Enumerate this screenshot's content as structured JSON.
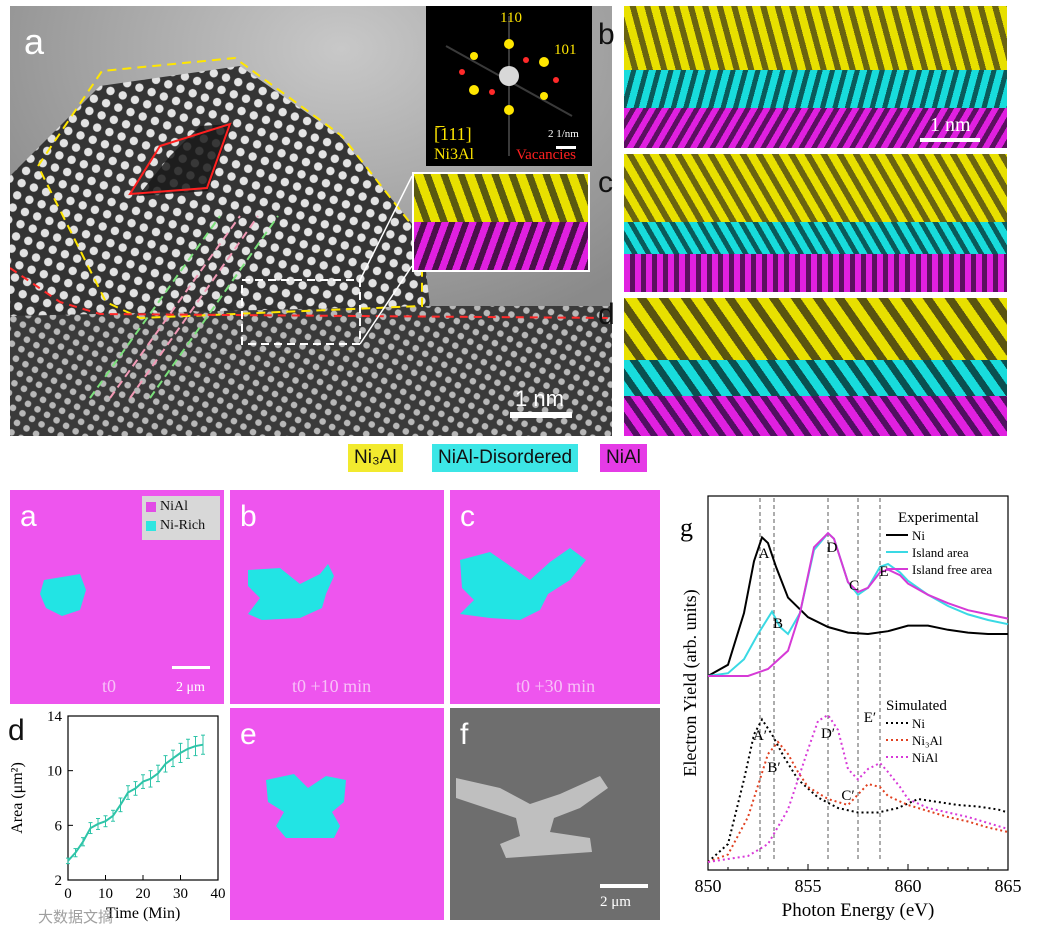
{
  "top": {
    "panel_a": {
      "label": "a",
      "scalebar": "1 nm",
      "inset_fft": {
        "spot_110": "110",
        "spot_101": "101",
        "zone_axis": "[̅111]",
        "phase": "Ni3Al",
        "vacancies": "Vacancies",
        "scalebar": "2 1/nm"
      }
    },
    "panel_b": {
      "label": "b",
      "scalebar": "1 nm"
    },
    "panel_c": {
      "label": "c"
    },
    "panel_d": {
      "label": "d"
    },
    "legend": [
      {
        "label": "Ni₃Al",
        "color": "#f2ea2e"
      },
      {
        "label": "NiAl-Disordered",
        "color": "#3ce6e6"
      },
      {
        "label": "NiAl",
        "color": "#e53be6"
      }
    ],
    "colors": {
      "yellow": "#e8e000",
      "cyan": "#18dcdc",
      "magenta": "#e020e0"
    }
  },
  "bottom": {
    "map_a": {
      "label": "a",
      "time": "t0",
      "scalebar": "2 μm",
      "legend": [
        {
          "label": "NiAl",
          "color": "#e24be6"
        },
        {
          "label": "Ni-Rich",
          "color": "#2ee6e0"
        }
      ]
    },
    "map_b": {
      "label": "b",
      "time": "t0 +10 min"
    },
    "map_c": {
      "label": "c",
      "time": "t0 +30 min"
    },
    "map_e": {
      "label": "e"
    },
    "map_f": {
      "label": "f",
      "scalebar": "2 μm"
    },
    "colors": {
      "background": "#ee55ee",
      "island": "#22e4e4"
    }
  },
  "watermark": "大数据文摘",
  "chart_data": [
    {
      "id": "d",
      "label": "d",
      "type": "line",
      "title": "",
      "xlabel": "Time (Min)",
      "ylabel": "Area (μm²)",
      "xlim": [
        0,
        40
      ],
      "ylim": [
        2,
        14
      ],
      "xticks": [
        0,
        10,
        20,
        30,
        40
      ],
      "yticks": [
        2,
        6,
        10,
        14
      ],
      "color": "#2ec4a8",
      "series": [
        {
          "name": "Area",
          "x": [
            0,
            2,
            4,
            6,
            8,
            10,
            12,
            14,
            16,
            18,
            20,
            22,
            24,
            26,
            28,
            30,
            32,
            34,
            36
          ],
          "y": [
            3.4,
            4.0,
            4.8,
            5.8,
            6.1,
            6.3,
            6.7,
            7.5,
            8.4,
            8.7,
            9.2,
            9.4,
            9.8,
            10.5,
            10.9,
            11.3,
            11.6,
            11.8,
            11.9
          ],
          "err": [
            0.2,
            0.3,
            0.3,
            0.4,
            0.4,
            0.4,
            0.4,
            0.5,
            0.5,
            0.5,
            0.5,
            0.6,
            0.6,
            0.6,
            0.6,
            0.7,
            0.7,
            0.7,
            0.7
          ]
        }
      ]
    },
    {
      "id": "g",
      "label": "g",
      "type": "line",
      "title": "",
      "xlabel": "Photon Energy (eV)",
      "ylabel": "Electron Yield (arb. units)",
      "xlim": [
        850,
        865
      ],
      "xticks": [
        850,
        855,
        860,
        865
      ],
      "legend_experimental_title": "Experimental",
      "legend_simulated_title": "Simulated",
      "experimental": [
        {
          "name": "Ni",
          "color": "#000000",
          "dash": "solid",
          "x": [
            850,
            851,
            851.8,
            852.3,
            852.7,
            853.0,
            853.4,
            854,
            855,
            856,
            857,
            858,
            859,
            860,
            861,
            862,
            863,
            864,
            865
          ],
          "y": [
            0.0,
            0.08,
            0.45,
            0.82,
            0.99,
            0.95,
            0.78,
            0.56,
            0.42,
            0.35,
            0.31,
            0.3,
            0.32,
            0.36,
            0.36,
            0.33,
            0.31,
            0.3,
            0.3
          ]
        },
        {
          "name": "Island area",
          "color": "#3ad9e4",
          "dash": "solid",
          "x": [
            850,
            851,
            851.8,
            852.5,
            853.2,
            853.6,
            854,
            854.6,
            855.3,
            856,
            856.3,
            857,
            857.5,
            858,
            858.6,
            859,
            859.6,
            860,
            861,
            862,
            863,
            864,
            865
          ],
          "y": [
            0.0,
            0.02,
            0.12,
            0.3,
            0.46,
            0.35,
            0.3,
            0.45,
            0.9,
            1.02,
            0.98,
            0.67,
            0.58,
            0.63,
            0.78,
            0.8,
            0.74,
            0.68,
            0.58,
            0.5,
            0.44,
            0.4,
            0.37
          ]
        },
        {
          "name": "Island free area",
          "color": "#d63ad6",
          "dash": "solid",
          "x": [
            850,
            852,
            853,
            854,
            854.6,
            855.3,
            856,
            856.3,
            857,
            857.5,
            858,
            858.6,
            859,
            859.6,
            860,
            861,
            862,
            863,
            864,
            865
          ],
          "y": [
            0.0,
            0.0,
            0.05,
            0.18,
            0.45,
            0.92,
            1.02,
            0.98,
            0.67,
            0.6,
            0.63,
            0.74,
            0.76,
            0.72,
            0.66,
            0.58,
            0.52,
            0.47,
            0.44,
            0.41
          ]
        }
      ],
      "simulated": [
        {
          "name": "Ni",
          "color": "#000000",
          "dash": "dot",
          "x": [
            850,
            851,
            851.8,
            852.3,
            852.7,
            853.2,
            853.8,
            854.5,
            855.5,
            856.5,
            857.5,
            858.5,
            859.5,
            860.5,
            861.5,
            862.5,
            863.5,
            864.5,
            865
          ],
          "y": [
            0.0,
            0.12,
            0.55,
            0.85,
            0.95,
            0.85,
            0.7,
            0.55,
            0.43,
            0.36,
            0.33,
            0.33,
            0.36,
            0.42,
            0.4,
            0.38,
            0.37,
            0.35,
            0.33
          ]
        },
        {
          "name": "Ni₃Al",
          "color": "#e04020",
          "dash": "dot",
          "x": [
            850,
            851,
            852,
            853,
            853.5,
            854,
            854.5,
            855,
            856,
            857,
            857.5,
            858,
            858.6,
            859,
            860,
            861,
            862,
            863,
            864,
            865
          ],
          "y": [
            0.0,
            0.05,
            0.3,
            0.72,
            0.8,
            0.72,
            0.6,
            0.5,
            0.42,
            0.38,
            0.45,
            0.52,
            0.5,
            0.44,
            0.38,
            0.34,
            0.3,
            0.27,
            0.23,
            0.2
          ]
        },
        {
          "name": "NiAl",
          "color": "#d83ad8",
          "dash": "dot",
          "x": [
            850,
            852,
            853,
            854,
            855,
            855.5,
            856,
            856.5,
            857,
            857.5,
            858,
            858.6,
            859,
            859.6,
            860,
            861,
            862,
            863,
            864,
            865
          ],
          "y": [
            0.0,
            0.04,
            0.12,
            0.35,
            0.75,
            0.94,
            0.98,
            0.88,
            0.62,
            0.55,
            0.62,
            0.66,
            0.6,
            0.5,
            0.42,
            0.36,
            0.33,
            0.3,
            0.26,
            0.22
          ]
        }
      ],
      "exp_peaks": [
        {
          "label": "A",
          "x": 852.6
        },
        {
          "label": "B",
          "x": 853.3
        },
        {
          "label": "D",
          "x": 856.0
        },
        {
          "label": "C",
          "x": 857.5
        },
        {
          "label": "E",
          "x": 858.6
        }
      ],
      "sim_peaks": [
        {
          "label": "A′",
          "x": 852.6
        },
        {
          "label": "B′",
          "x": 853.3
        },
        {
          "label": "D′",
          "x": 856.0
        },
        {
          "label": "C′",
          "x": 857.0
        },
        {
          "label": "E′",
          "x": 857.7
        }
      ]
    }
  ]
}
